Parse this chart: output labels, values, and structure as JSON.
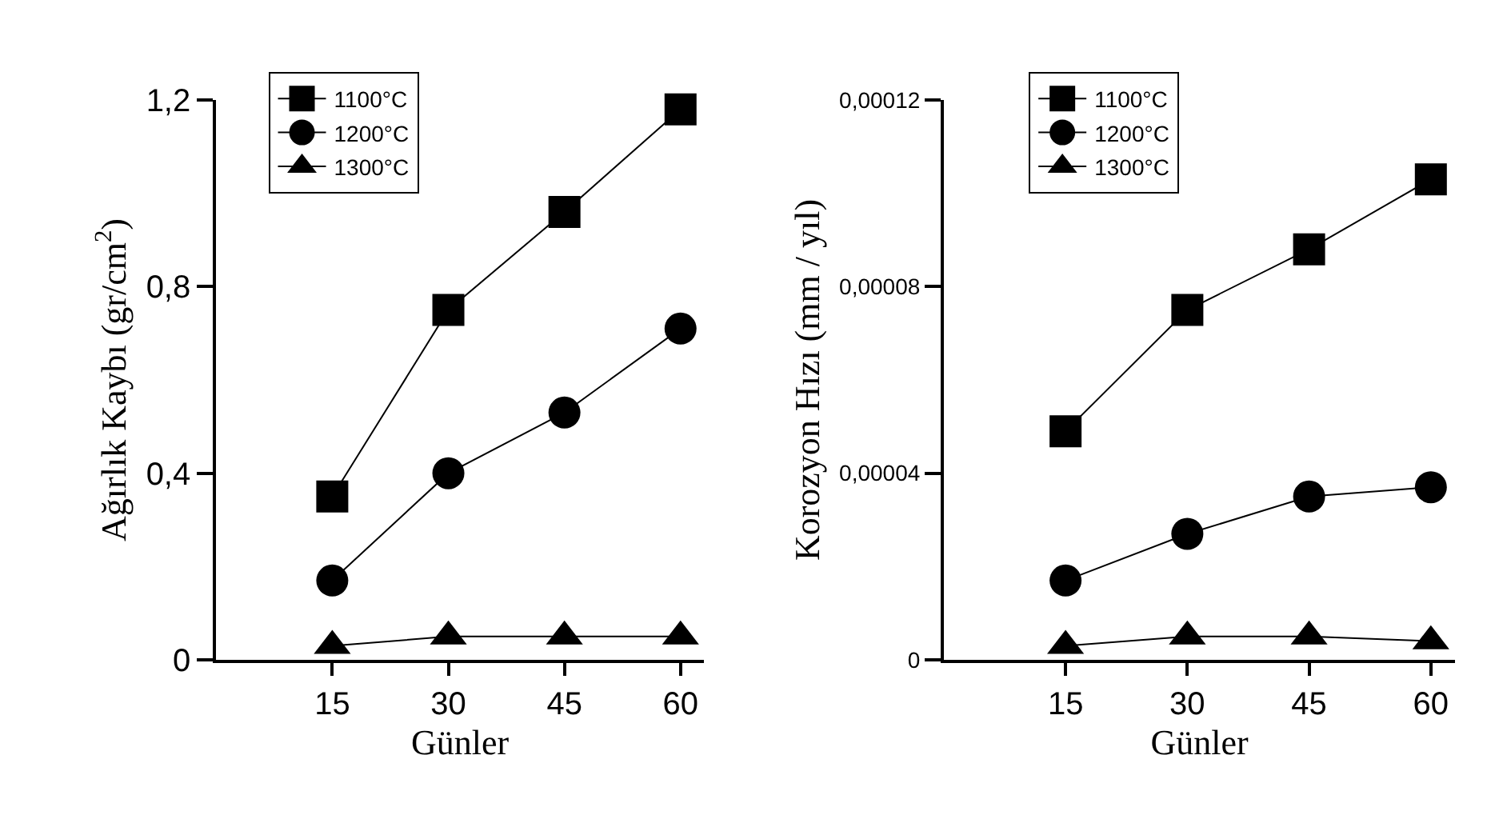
{
  "chart_data": [
    {
      "type": "line",
      "xlabel": "Günler",
      "ylabel": "Ağırlık Kaybı (gr/cm$^{2}$)",
      "x": [
        15,
        30,
        45,
        60
      ],
      "xlim": [
        0,
        63
      ],
      "xticks": [
        15,
        30,
        45,
        60
      ],
      "ylim": [
        0,
        1.2
      ],
      "yticks": [
        {
          "value": 0,
          "label": "0"
        },
        {
          "value": 0.4,
          "label": "0,4"
        },
        {
          "value": 0.8,
          "label": "0,8"
        },
        {
          "value": 1.2,
          "label": "1,2"
        }
      ],
      "legend": "top left",
      "line_style": "solid",
      "series": [
        {
          "name": "1100°C",
          "color": "#000000",
          "marker": "square",
          "values": [
            0.35,
            0.75,
            0.96,
            1.18
          ]
        },
        {
          "name": "1200°C",
          "color": "#000000",
          "marker": "circle",
          "values": [
            0.17,
            0.4,
            0.53,
            0.71
          ]
        },
        {
          "name": "1300°C",
          "color": "#000000",
          "marker": "triangle",
          "values": [
            0.03,
            0.05,
            0.05,
            0.05
          ]
        }
      ]
    },
    {
      "type": "line",
      "xlabel": "Günler",
      "ylabel": "Korozyon Hızı (mm / yıl)",
      "x": [
        15,
        30,
        45,
        60
      ],
      "xlim": [
        0,
        63
      ],
      "xticks": [
        15,
        30,
        45,
        60
      ],
      "ylim": [
        0,
        0.00012
      ],
      "yticks": [
        {
          "value": 0,
          "label": "0"
        },
        {
          "value": 4e-05,
          "label": "0,00004"
        },
        {
          "value": 8e-05,
          "label": "0,00008"
        },
        {
          "value": 0.00012,
          "label": "0,00012"
        }
      ],
      "legend": "top left",
      "line_style": "solid",
      "series": [
        {
          "name": "1100°C",
          "color": "#000000",
          "marker": "square",
          "values": [
            4.9e-05,
            7.5e-05,
            8.8e-05,
            0.000103
          ]
        },
        {
          "name": "1200°C",
          "color": "#000000",
          "marker": "circle",
          "values": [
            1.7e-05,
            2.7e-05,
            3.5e-05,
            3.7e-05
          ]
        },
        {
          "name": "1300°C",
          "color": "#000000",
          "marker": "triangle",
          "values": [
            3e-06,
            5e-06,
            5e-06,
            4e-06
          ]
        }
      ]
    }
  ]
}
